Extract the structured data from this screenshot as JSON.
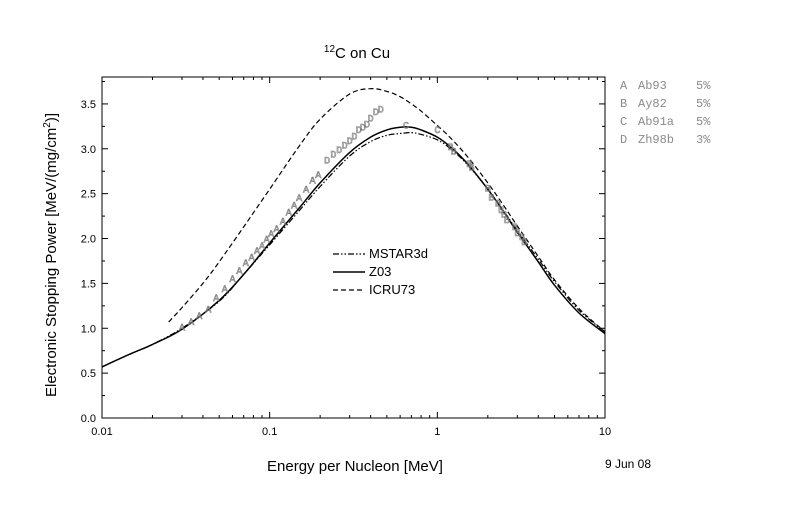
{
  "chart_data": {
    "type": "line",
    "title_iso": "12",
    "title_rest": "C on Cu",
    "xlabel": "Energy per Nucleon [MeV]",
    "ylabel_main": "Electronic Stopping Power [MeV/(mg/cm",
    "ylabel_sup": "2",
    "ylabel_end": ")]",
    "date_stamp": "9 Jun 08",
    "x_scale": "log",
    "xlim": [
      0.01,
      10
    ],
    "ylim": [
      0.0,
      3.8
    ],
    "x_ticks": [
      {
        "value": 0.01,
        "label": "0.01"
      },
      {
        "value": 0.1,
        "label": "0.1"
      },
      {
        "value": 1,
        "label": "1"
      },
      {
        "value": 10,
        "label": "10"
      }
    ],
    "y_ticks": [
      {
        "value": 0.0,
        "label": "0.0"
      },
      {
        "value": 0.5,
        "label": "0.5"
      },
      {
        "value": 1.0,
        "label": "1.0"
      },
      {
        "value": 1.5,
        "label": "1.5"
      },
      {
        "value": 2.0,
        "label": "2.0"
      },
      {
        "value": 2.5,
        "label": "2.5"
      },
      {
        "value": 3.0,
        "label": "3.0"
      },
      {
        "value": 3.5,
        "label": "3.5"
      }
    ],
    "legend_placement": "center",
    "series": [
      {
        "name": "MSTAR3d",
        "dash": "dashdotdot",
        "x": [
          0.01,
          0.015,
          0.02,
          0.03,
          0.05,
          0.07,
          0.1,
          0.15,
          0.2,
          0.3,
          0.4,
          0.5,
          0.6,
          0.7,
          0.8,
          1.0,
          1.2,
          1.5,
          2.0,
          2.5,
          3.0,
          4.0,
          5.0,
          7.0,
          10.0
        ],
        "y": [
          0.57,
          0.72,
          0.82,
          1.0,
          1.3,
          1.6,
          1.93,
          2.31,
          2.58,
          2.92,
          3.08,
          3.15,
          3.17,
          3.18,
          3.16,
          3.1,
          3.0,
          2.83,
          2.55,
          2.3,
          2.09,
          1.77,
          1.52,
          1.2,
          0.96
        ]
      },
      {
        "name": "Z03",
        "dash": "solid",
        "x": [
          0.01,
          0.015,
          0.02,
          0.03,
          0.05,
          0.07,
          0.1,
          0.15,
          0.2,
          0.3,
          0.4,
          0.5,
          0.6,
          0.7,
          0.8,
          1.0,
          1.2,
          1.5,
          2.0,
          2.5,
          3.0,
          4.0,
          5.0,
          7.0,
          10.0
        ],
        "y": [
          0.57,
          0.72,
          0.82,
          0.99,
          1.31,
          1.6,
          1.95,
          2.34,
          2.62,
          2.96,
          3.13,
          3.21,
          3.24,
          3.24,
          3.21,
          3.13,
          3.02,
          2.84,
          2.55,
          2.29,
          2.07,
          1.74,
          1.48,
          1.17,
          0.94
        ]
      },
      {
        "name": "ICRU73",
        "dash": "dashed",
        "x": [
          0.025,
          0.03,
          0.04,
          0.05,
          0.07,
          0.1,
          0.15,
          0.2,
          0.3,
          0.4,
          0.5,
          0.6,
          0.7,
          0.8,
          1.0,
          1.2,
          1.5,
          2.0,
          2.5,
          3.0,
          4.0,
          5.0,
          7.0,
          10.0
        ],
        "y": [
          1.07,
          1.23,
          1.5,
          1.74,
          2.13,
          2.55,
          3.03,
          3.33,
          3.61,
          3.67,
          3.64,
          3.58,
          3.5,
          3.42,
          3.26,
          3.12,
          2.92,
          2.62,
          2.36,
          2.14,
          1.8,
          1.54,
          1.22,
          0.96
        ]
      }
    ],
    "measurements": [
      {
        "letter": "A",
        "ref": "Ab93",
        "error": "5%",
        "x": [
          0.03,
          0.034,
          0.038,
          0.043,
          0.048,
          0.054,
          0.06,
          0.066,
          0.072,
          0.078,
          0.084,
          0.09,
          0.096,
          0.102,
          0.11,
          0.12,
          0.13,
          0.14,
          0.15,
          0.165,
          0.18,
          0.195
        ],
        "y": [
          1.02,
          1.08,
          1.15,
          1.22,
          1.35,
          1.45,
          1.56,
          1.65,
          1.74,
          1.8,
          1.87,
          1.93,
          2.0,
          2.06,
          2.12,
          2.2,
          2.3,
          2.38,
          2.46,
          2.56,
          2.66,
          2.72
        ]
      },
      {
        "letter": "B",
        "ref": "Ay82",
        "error": "5%",
        "x": [
          1.2,
          1.25,
          1.55,
          1.6,
          2.0,
          2.1,
          2.3,
          2.4,
          2.5,
          2.6,
          2.9,
          3.0,
          3.2,
          3.3
        ],
        "y": [
          3.03,
          2.98,
          2.84,
          2.8,
          2.57,
          2.47,
          2.4,
          2.33,
          2.28,
          2.22,
          2.14,
          2.07,
          2.03,
          1.97
        ]
      },
      {
        "letter": "C",
        "ref": "Ab91a",
        "error": "5%",
        "x": [
          0.65,
          1.0
        ],
        "y": [
          3.27,
          3.22
        ]
      },
      {
        "letter": "D",
        "ref": "Zh98b",
        "error": "3%",
        "x": [
          0.22,
          0.24,
          0.26,
          0.28,
          0.3,
          0.32,
          0.34,
          0.36,
          0.38,
          0.4,
          0.43,
          0.46
        ],
        "y": [
          2.88,
          2.95,
          3.0,
          3.05,
          3.1,
          3.15,
          3.22,
          3.25,
          3.28,
          3.35,
          3.42,
          3.45
        ]
      }
    ]
  }
}
